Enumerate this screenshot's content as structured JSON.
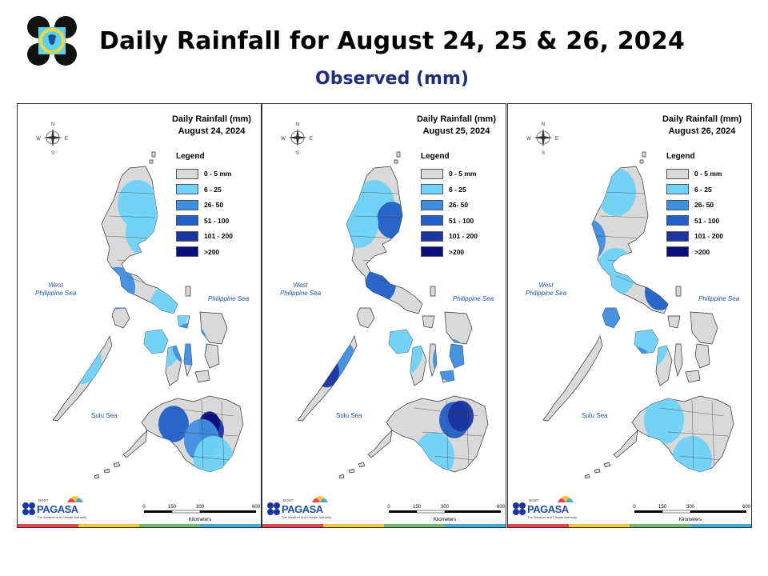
{
  "header": {
    "title": "Daily Rainfall for August 24, 25 & 26, 2024",
    "subtitle": "Observed (mm)"
  },
  "colors": {
    "title": "#000000",
    "subtitle": "#1f2d7a",
    "land": "#d9d9d9",
    "sea_label": "#1f4e99",
    "footer": [
      "#e8434a",
      "#f2c744",
      "#6fba6e",
      "#4aa8d8"
    ]
  },
  "panels": [
    {
      "title_line1": "Daily Rainfall (mm)",
      "title_line2": "August 24, 2024",
      "rain_zones": [
        {
          "class": 1,
          "cx": 150,
          "cy": 125
        },
        {
          "class": 1,
          "cx": 160,
          "cy": 160
        },
        {
          "class": 2,
          "cx": 125,
          "cy": 230
        },
        {
          "class": 1,
          "cx": 190,
          "cy": 255
        },
        {
          "class": 1,
          "cx": 180,
          "cy": 300
        },
        {
          "class": 2,
          "cx": 215,
          "cy": 300
        },
        {
          "class": 1,
          "cx": 80,
          "cy": 320
        },
        {
          "class": 3,
          "cx": 195,
          "cy": 400
        },
        {
          "class": 4,
          "cx": 242,
          "cy": 408
        },
        {
          "class": 5,
          "cx": 240,
          "cy": 400
        },
        {
          "class": 2,
          "cx": 230,
          "cy": 420
        },
        {
          "class": 1,
          "cx": 245,
          "cy": 445
        }
      ]
    },
    {
      "title_line1": "Daily Rainfall (mm)",
      "title_line2": "August 25, 2024",
      "rain_zones": [
        {
          "class": 1,
          "cx": 140,
          "cy": 125
        },
        {
          "class": 3,
          "cx": 162,
          "cy": 145
        },
        {
          "class": 1,
          "cx": 120,
          "cy": 150
        },
        {
          "class": 3,
          "cx": 148,
          "cy": 225
        },
        {
          "class": 2,
          "cx": 95,
          "cy": 320
        },
        {
          "class": 4,
          "cx": 80,
          "cy": 335
        },
        {
          "class": 2,
          "cx": 235,
          "cy": 320
        },
        {
          "class": 1,
          "cx": 175,
          "cy": 310
        },
        {
          "class": 3,
          "cx": 240,
          "cy": 395
        },
        {
          "class": 4,
          "cx": 248,
          "cy": 390
        },
        {
          "class": 1,
          "cx": 215,
          "cy": 440
        }
      ]
    },
    {
      "title_line1": "Daily Rainfall (mm)",
      "title_line2": "August 26, 2024",
      "rain_zones": [
        {
          "class": 1,
          "cx": 135,
          "cy": 110
        },
        {
          "class": 2,
          "cx": 100,
          "cy": 170
        },
        {
          "class": 1,
          "cx": 135,
          "cy": 210
        },
        {
          "class": 3,
          "cx": 190,
          "cy": 235
        },
        {
          "class": 2,
          "cx": 140,
          "cy": 265
        },
        {
          "class": 1,
          "cx": 175,
          "cy": 300
        },
        {
          "class": 2,
          "cx": 160,
          "cy": 330
        },
        {
          "class": 1,
          "cx": 195,
          "cy": 395
        },
        {
          "class": 1,
          "cx": 230,
          "cy": 445
        }
      ]
    }
  ],
  "legend": {
    "title": "Legend",
    "items": [
      {
        "label": "0 - 5 mm",
        "color": "#d9d9d9"
      },
      {
        "label": "6 - 25",
        "color": "#6fd3f7"
      },
      {
        "label": "26- 50",
        "color": "#3f8fe0"
      },
      {
        "label": "51 - 100",
        "color": "#2160c8"
      },
      {
        "label": "101 - 200",
        "color": "#1a34a0"
      },
      {
        "label": ">200",
        "color": "#0b0f7a"
      }
    ]
  },
  "sea_labels": {
    "west_line1": "West",
    "west_line2": "Philippine Sea",
    "east": "Philippine Sea",
    "sulu": "Sulu Sea"
  },
  "compass": {
    "n": "N",
    "s": "S",
    "e": "E",
    "w": "W"
  },
  "scale_bar": {
    "ticks": [
      "0",
      "150",
      "300",
      "600"
    ],
    "unit": "Kilometers"
  },
  "branding": {
    "agency_small": "DOST",
    "agency_tag": "PAGASA",
    "agency_sub": "The Weather and Climate Authority"
  }
}
